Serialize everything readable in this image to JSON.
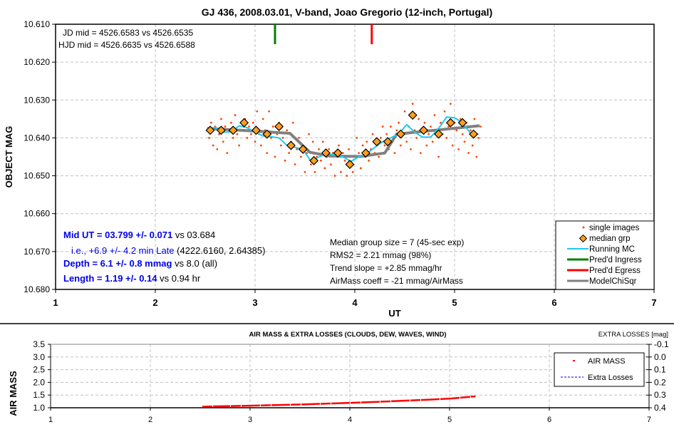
{
  "chart_data": [
    {
      "type": "scatter",
      "title": "GJ 436, 2008.03.01, V-band, Joao Gregorio (12-inch, Portugal)",
      "xlabel": "UT",
      "ylabel": "OBJECT MAG",
      "xlim": [
        1,
        7
      ],
      "ylim": [
        10.61,
        10.68
      ],
      "y_inverted": false,
      "grid": true,
      "x_ticks": [
        "1",
        "2",
        "3",
        "4",
        "5",
        "6",
        "7"
      ],
      "y_ticks": [
        "10.610",
        "10.620",
        "10.630",
        "10.640",
        "10.650",
        "10.660",
        "10.670",
        "10.680"
      ],
      "legend_position": "bottom-right",
      "legend": [
        "single images",
        "median grp",
        "Running MC",
        "Pred'd Ingress",
        "Pred'd Egress",
        "ModelChiSqr"
      ],
      "annotations": {
        "jd_mid": "JD mid = 4526.6583 vs 4526.6535",
        "hjd_mid": "HJD mid = 4526.6635 vs 4526.6588",
        "mid_ut_bold": "Mid UT = 03.799 +/- 0.071",
        "mid_ut_rest": " vs 03.684",
        "late_blue": "i.e., +6.9 +/- 4.2 min Late",
        "late_rest": " (4222.6160, 2.64385)",
        "depth_bold": "Depth = 6.1 +/- 0.8 mmag",
        "depth_rest": " vs 8.0 (all)",
        "length_bold": "Length = 1.19 +/- 0.14",
        "length_rest": " vs 0.94 hr",
        "median_group": "Median group size = 7 (45-sec exp)",
        "rms": "RMS2 = 2.21 mmag (98%)",
        "trend": "Trend slope = +2.85 mmag/hr",
        "airmass_coeff": "AirMass coeff = -21 mmag/AirMass"
      },
      "predicted_ingress_ut": 3.2,
      "predicted_egress_ut": 4.17,
      "series": [
        {
          "name": "median grp",
          "x": [
            2.55,
            2.66,
            2.78,
            2.89,
            3.01,
            3.12,
            3.24,
            3.36,
            3.48,
            3.59,
            3.71,
            3.83,
            3.95,
            4.11,
            4.22,
            4.33,
            4.46,
            4.58,
            4.69,
            4.84,
            4.96,
            5.08,
            5.19
          ],
          "y": [
            10.638,
            10.638,
            10.638,
            10.636,
            10.638,
            10.639,
            10.637,
            10.642,
            10.643,
            10.646,
            10.644,
            10.644,
            10.647,
            10.644,
            10.641,
            10.641,
            10.639,
            10.634,
            10.638,
            10.639,
            10.636,
            10.636,
            10.639
          ]
        },
        {
          "name": "ModelChiSqr",
          "x": [
            2.52,
            3.0,
            3.35,
            3.55,
            3.75,
            4.05,
            4.3,
            4.42,
            5.25
          ],
          "y": [
            10.6375,
            10.6382,
            10.6388,
            10.6438,
            10.6448,
            10.6449,
            10.644,
            10.639,
            10.6368
          ]
        },
        {
          "name": "Running MC",
          "x": [
            2.52,
            2.6,
            2.68,
            2.76,
            2.84,
            2.92,
            3.0,
            3.08,
            3.16,
            3.24,
            3.32,
            3.4,
            3.48,
            3.56,
            3.64,
            3.72,
            3.8,
            3.88,
            3.96,
            4.04,
            4.12,
            4.2,
            4.28,
            4.36,
            4.44,
            4.52,
            4.6,
            4.68,
            4.76,
            4.84,
            4.92,
            5.0,
            5.08,
            5.16,
            5.24
          ],
          "y": [
            10.6378,
            10.6372,
            10.6385,
            10.6384,
            10.6368,
            10.6373,
            10.6385,
            10.6395,
            10.6397,
            10.64,
            10.642,
            10.6425,
            10.643,
            10.6462,
            10.645,
            10.6442,
            10.6445,
            10.645,
            10.6462,
            10.645,
            10.6442,
            10.6425,
            10.641,
            10.64,
            10.639,
            10.6365,
            10.6385,
            10.6398,
            10.6398,
            10.6375,
            10.6345,
            10.6347,
            10.636,
            10.6388,
            10.639
          ]
        },
        {
          "name": "single images",
          "x": [
            2.52,
            2.54,
            2.56,
            2.58,
            2.6,
            2.62,
            2.64,
            2.66,
            2.68,
            2.7,
            2.72,
            2.74,
            2.76,
            2.78,
            2.8,
            2.82,
            2.84,
            2.86,
            2.88,
            2.9,
            2.92,
            2.94,
            2.96,
            2.98,
            3.0,
            3.02,
            3.04,
            3.06,
            3.08,
            3.1,
            3.12,
            3.14,
            3.16,
            3.18,
            3.2,
            3.22,
            3.24,
            3.26,
            3.28,
            3.3,
            3.32,
            3.34,
            3.36,
            3.38,
            3.4,
            3.42,
            3.44,
            3.46,
            3.48,
            3.5,
            3.52,
            3.54,
            3.56,
            3.58,
            3.6,
            3.62,
            3.64,
            3.66,
            3.68,
            3.7,
            3.72,
            3.74,
            3.76,
            3.78,
            3.8,
            3.82,
            3.84,
            3.86,
            3.88,
            3.9,
            3.92,
            3.94,
            3.96,
            3.98,
            4.0,
            4.02,
            4.04,
            4.06,
            4.08,
            4.1,
            4.12,
            4.14,
            4.16,
            4.18,
            4.2,
            4.22,
            4.24,
            4.26,
            4.28,
            4.3,
            4.32,
            4.34,
            4.36,
            4.38,
            4.4,
            4.42,
            4.44,
            4.46,
            4.48,
            4.5,
            4.52,
            4.54,
            4.56,
            4.58,
            4.6,
            4.62,
            4.64,
            4.66,
            4.68,
            4.7,
            4.72,
            4.74,
            4.76,
            4.78,
            4.8,
            4.82,
            4.84,
            4.86,
            4.88,
            4.9,
            4.92,
            4.94,
            4.96,
            4.98,
            5.0,
            5.02,
            5.04,
            5.06,
            5.08,
            5.1,
            5.12,
            5.14,
            5.16,
            5.18,
            5.2,
            5.22,
            5.24,
            5.26
          ],
          "y": [
            10.638,
            10.64,
            10.636,
            10.642,
            10.637,
            10.643,
            10.639,
            10.635,
            10.641,
            10.637,
            10.644,
            10.638,
            10.636,
            10.64,
            10.634,
            10.639,
            10.642,
            10.636,
            10.638,
            10.635,
            10.64,
            10.637,
            10.639,
            10.636,
            10.641,
            10.633,
            10.639,
            10.642,
            10.635,
            10.638,
            10.644,
            10.633,
            10.64,
            10.637,
            10.645,
            10.639,
            10.636,
            10.642,
            10.64,
            10.646,
            10.638,
            10.644,
            10.641,
            10.636,
            10.647,
            10.643,
            10.64,
            10.645,
            10.642,
            10.649,
            10.644,
            10.639,
            10.647,
            10.641,
            10.649,
            10.645,
            10.643,
            10.646,
            10.641,
            10.648,
            10.645,
            10.643,
            10.647,
            10.644,
            10.65,
            10.645,
            10.642,
            10.649,
            10.644,
            10.646,
            10.65,
            10.643,
            10.647,
            10.649,
            10.645,
            10.64,
            10.644,
            10.648,
            10.642,
            10.645,
            10.641,
            10.646,
            10.643,
            10.639,
            10.644,
            10.641,
            10.645,
            10.64,
            10.637,
            10.642,
            10.639,
            10.643,
            10.637,
            10.641,
            10.644,
            10.638,
            10.636,
            10.642,
            10.639,
            10.633,
            10.641,
            10.637,
            10.643,
            10.631,
            10.638,
            10.64,
            10.635,
            10.644,
            10.638,
            10.636,
            10.642,
            10.639,
            10.637,
            10.641,
            10.634,
            10.638,
            10.645,
            10.636,
            10.639,
            10.633,
            10.64,
            10.637,
            10.631,
            10.642,
            10.636,
            10.638,
            10.643,
            10.635,
            10.639,
            10.641,
            10.636,
            10.644,
            10.638,
            10.642,
            10.635,
            10.645,
            10.64,
            10.637
          ]
        }
      ]
    },
    {
      "type": "line",
      "title": "AIR MASS & EXTRA LOSSES (CLOUDS, DEW, WAVES, WIND)",
      "xlabel": "",
      "ylabel": "AIR MASS",
      "y2label": "EXTRA LOSSES [mag]",
      "xlim": [
        1,
        7
      ],
      "ylim": [
        1.0,
        3.5
      ],
      "y2lim": [
        -0.1,
        0.4
      ],
      "grid": true,
      "x_ticks": [
        "1",
        "2",
        "3",
        "4",
        "5",
        "6",
        "7"
      ],
      "y_ticks": [
        "1.0",
        "1.5",
        "2.0",
        "2.5",
        "3.0",
        "3.5"
      ],
      "y2_ticks": [
        "-0.1",
        "0.0",
        "0.1",
        "0.2",
        "0.3",
        "0.4"
      ],
      "legend_position": "top-right",
      "legend": [
        "AIR MASS",
        "Extra Losses"
      ],
      "series": [
        {
          "name": "AIR MASS",
          "x": [
            2.52,
            2.7,
            3.0,
            3.3,
            3.6,
            3.9,
            4.2,
            4.5,
            4.8,
            5.0,
            5.26
          ],
          "y": [
            1.04,
            1.06,
            1.08,
            1.11,
            1.14,
            1.18,
            1.22,
            1.27,
            1.32,
            1.36,
            1.45
          ]
        },
        {
          "name": "Extra Losses",
          "x": [],
          "y": []
        }
      ]
    }
  ]
}
